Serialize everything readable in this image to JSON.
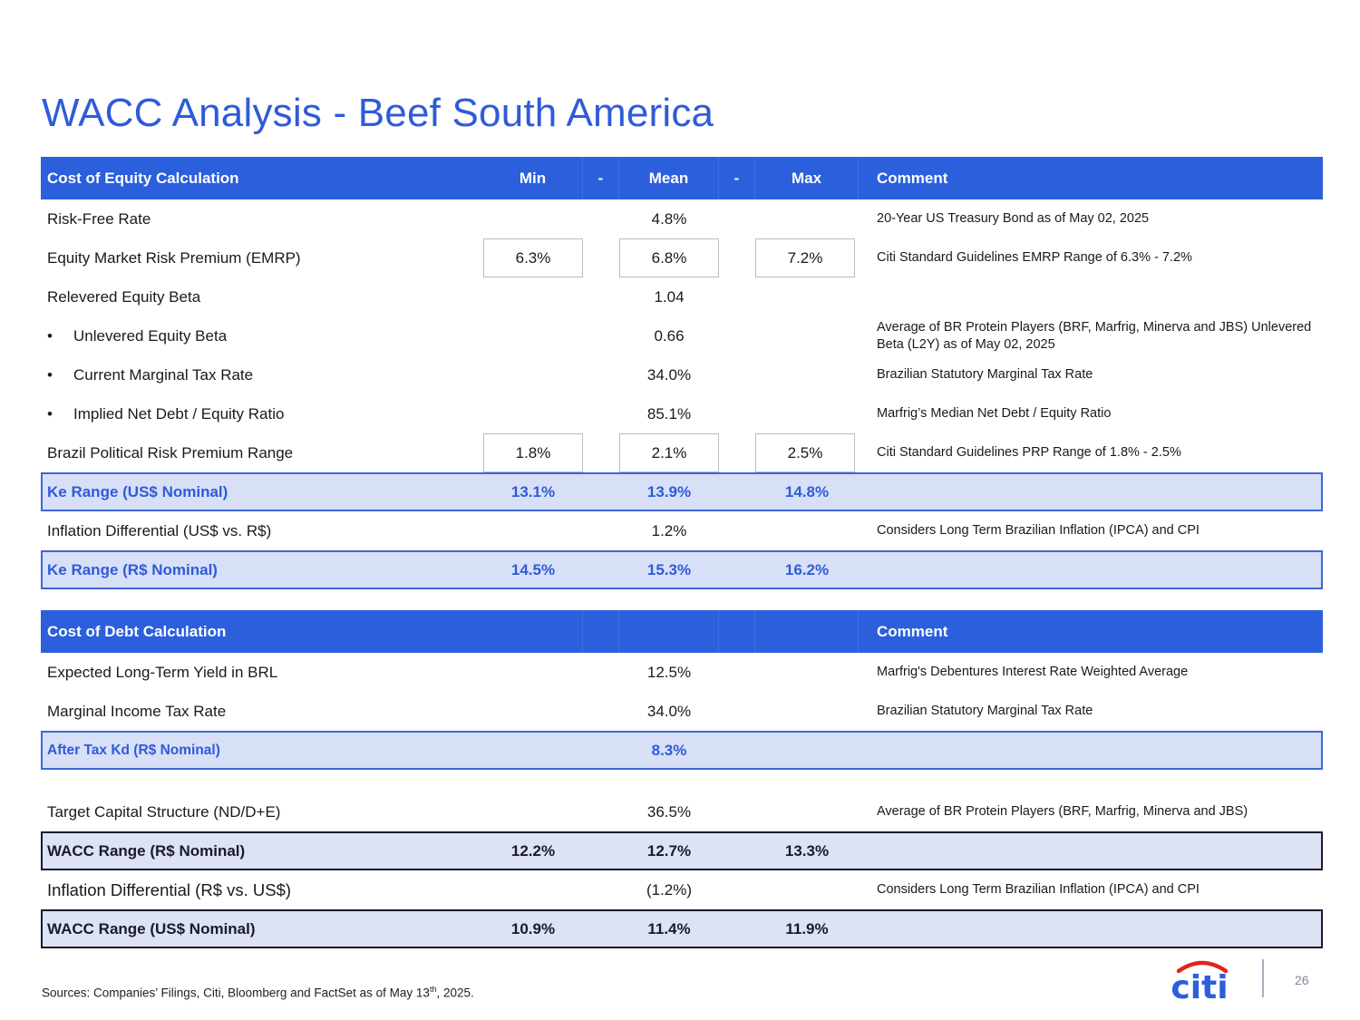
{
  "title": "WACC Analysis - Beef South America",
  "equity": {
    "header": {
      "label": "Cost of Equity Calculation",
      "min": "Min",
      "d1": "-",
      "mean": "Mean",
      "d2": "-",
      "max": "Max",
      "comment": "Comment"
    },
    "rows": [
      {
        "label": "Risk-Free Rate",
        "min": "",
        "mean": "4.8%",
        "max": "",
        "comment": "20-Year US Treasury Bond as of May 02, 2025"
      },
      {
        "label": "Equity Market Risk Premium (EMRP)",
        "min": "6.3%",
        "mean": "6.8%",
        "max": "7.2%",
        "comment": "Citi Standard Guidelines EMRP Range of 6.3% - 7.2%"
      },
      {
        "label": "Relevered Equity Beta",
        "min": "",
        "mean": "1.04",
        "max": "",
        "comment": ""
      },
      {
        "label": "Unlevered Equity Beta",
        "min": "",
        "mean": "0.66",
        "max": "",
        "comment": "Average of BR Protein Players (BRF, Marfrig, Minerva and JBS) Unlevered Beta (L2Y) as of May 02, 2025"
      },
      {
        "label": "Current Marginal Tax Rate",
        "min": "",
        "mean": "34.0%",
        "max": "",
        "comment": "Brazilian Statutory Marginal Tax Rate"
      },
      {
        "label": "Implied Net Debt / Equity Ratio",
        "min": "",
        "mean": "85.1%",
        "max": "",
        "comment": "Marfrig’s Median Net Debt / Equity Ratio"
      },
      {
        "label": "Brazil Political Risk Premium Range",
        "min": "1.8%",
        "mean": "2.1%",
        "max": "2.5%",
        "comment": "Citi Standard Guidelines PRP Range of 1.8% - 2.5%"
      },
      {
        "label": "Ke Range (US$ Nominal)",
        "min": "13.1%",
        "mean": "13.9%",
        "max": "14.8%",
        "comment": ""
      },
      {
        "label": "Inflation Differential (US$ vs. R$)",
        "min": "",
        "mean": "1.2%",
        "max": "",
        "comment": "Considers Long Term Brazilian Inflation (IPCA) and CPI"
      },
      {
        "label": "Ke Range  (R$ Nominal)",
        "min": "14.5%",
        "mean": "15.3%",
        "max": "16.2%",
        "comment": ""
      }
    ]
  },
  "debt": {
    "header": {
      "label": "Cost of Debt Calculation",
      "comment": "Comment"
    },
    "rows": [
      {
        "label": "Expected Long-Term Yield in BRL",
        "mean": "12.5%",
        "comment": "Marfrig's Debentures Interest Rate Weighted Average"
      },
      {
        "label": "Marginal Income Tax Rate",
        "mean": "34.0%",
        "comment": "Brazilian Statutory Marginal Tax Rate"
      },
      {
        "label": "After Tax Kd (R$ Nominal)",
        "mean": "8.3%",
        "comment": ""
      }
    ]
  },
  "wacc": {
    "rows": [
      {
        "label": "Target Capital Structure (ND/D+E)",
        "min": "",
        "mean": "36.5%",
        "max": "",
        "comment": "Average of BR Protein Players (BRF, Marfrig, Minerva and JBS)"
      },
      {
        "label": "WACC Range (R$ Nominal)",
        "min": "12.2%",
        "mean": "12.7%",
        "max": "13.3%",
        "comment": ""
      },
      {
        "label": "Inflation Differential (R$ vs. US$)",
        "min": "",
        "mean": "(1.2%)",
        "max": "",
        "comment": "Considers Long Term Brazilian Inflation (IPCA) and CPI"
      },
      {
        "label": "WACC Range (US$ Nominal)",
        "min": "10.9%",
        "mean": "11.4%",
        "max": "11.9%",
        "comment": ""
      }
    ]
  },
  "footer": {
    "sources": "Sources: Companies’ Filings, Citi, Bloomberg and FactSet as of May 13",
    "sup": "th",
    "suffix": ", 2025."
  },
  "logo": {
    "text": "citi",
    "arc_color": "#e2231a",
    "text_color": "#2b5fdc"
  },
  "page_number": "26"
}
